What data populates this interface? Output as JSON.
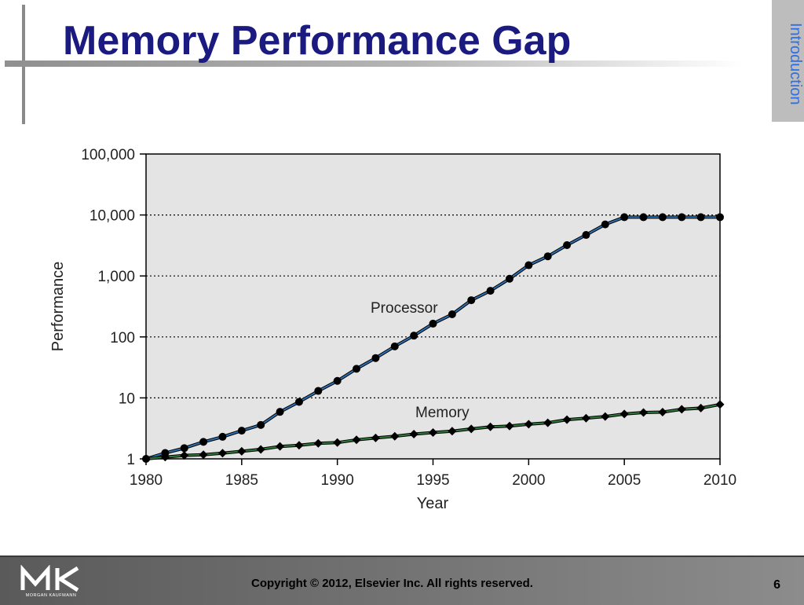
{
  "slide": {
    "title": "Memory Performance Gap",
    "section_label": "Introduction",
    "footer": {
      "copyright": "Copyright © 2012, Elsevier Inc. All rights reserved.",
      "page_number": "6",
      "logo_text": "MORGAN KAUFMANN",
      "logo_icon": "mk-logo-icon"
    }
  },
  "chart_data": {
    "type": "line",
    "title": "",
    "xlabel": "Year",
    "ylabel": "Performance",
    "xlim": [
      1980,
      2010
    ],
    "ylim": [
      1,
      100000
    ],
    "yscale": "log",
    "x_tick_labels": [
      "1980",
      "1985",
      "1990",
      "1995",
      "2000",
      "2005",
      "2010"
    ],
    "y_tick_labels": [
      "1",
      "10",
      "100",
      "1,000",
      "10,000",
      "100,000"
    ],
    "grid": "horizontal dotted at major y ticks",
    "x": [
      1980,
      1981,
      1982,
      1983,
      1984,
      1985,
      1986,
      1987,
      1988,
      1989,
      1990,
      1991,
      1992,
      1993,
      1994,
      1995,
      1996,
      1997,
      1998,
      1999,
      2000,
      2001,
      2002,
      2003,
      2004,
      2005,
      2006,
      2007,
      2008,
      2009,
      2010
    ],
    "series": [
      {
        "name": "Processor",
        "color": "#2e6fae",
        "marker": "circle",
        "values": [
          1.0,
          1.25,
          1.5,
          1.9,
          2.3,
          2.9,
          3.6,
          5.9,
          8.6,
          13,
          19,
          30,
          45,
          70,
          105,
          165,
          235,
          400,
          570,
          900,
          1500,
          2100,
          3200,
          4700,
          7000,
          9200,
          9200,
          9200,
          9200,
          9200,
          9200
        ]
      },
      {
        "name": "Memory",
        "color": "#2f7a3a",
        "marker": "diamond",
        "values": [
          1.0,
          1.07,
          1.14,
          1.17,
          1.24,
          1.33,
          1.43,
          1.6,
          1.67,
          1.8,
          1.85,
          2.05,
          2.2,
          2.35,
          2.55,
          2.7,
          2.85,
          3.1,
          3.35,
          3.45,
          3.7,
          3.9,
          4.4,
          4.65,
          4.95,
          5.45,
          5.75,
          5.85,
          6.5,
          6.8,
          7.8
        ]
      }
    ]
  }
}
